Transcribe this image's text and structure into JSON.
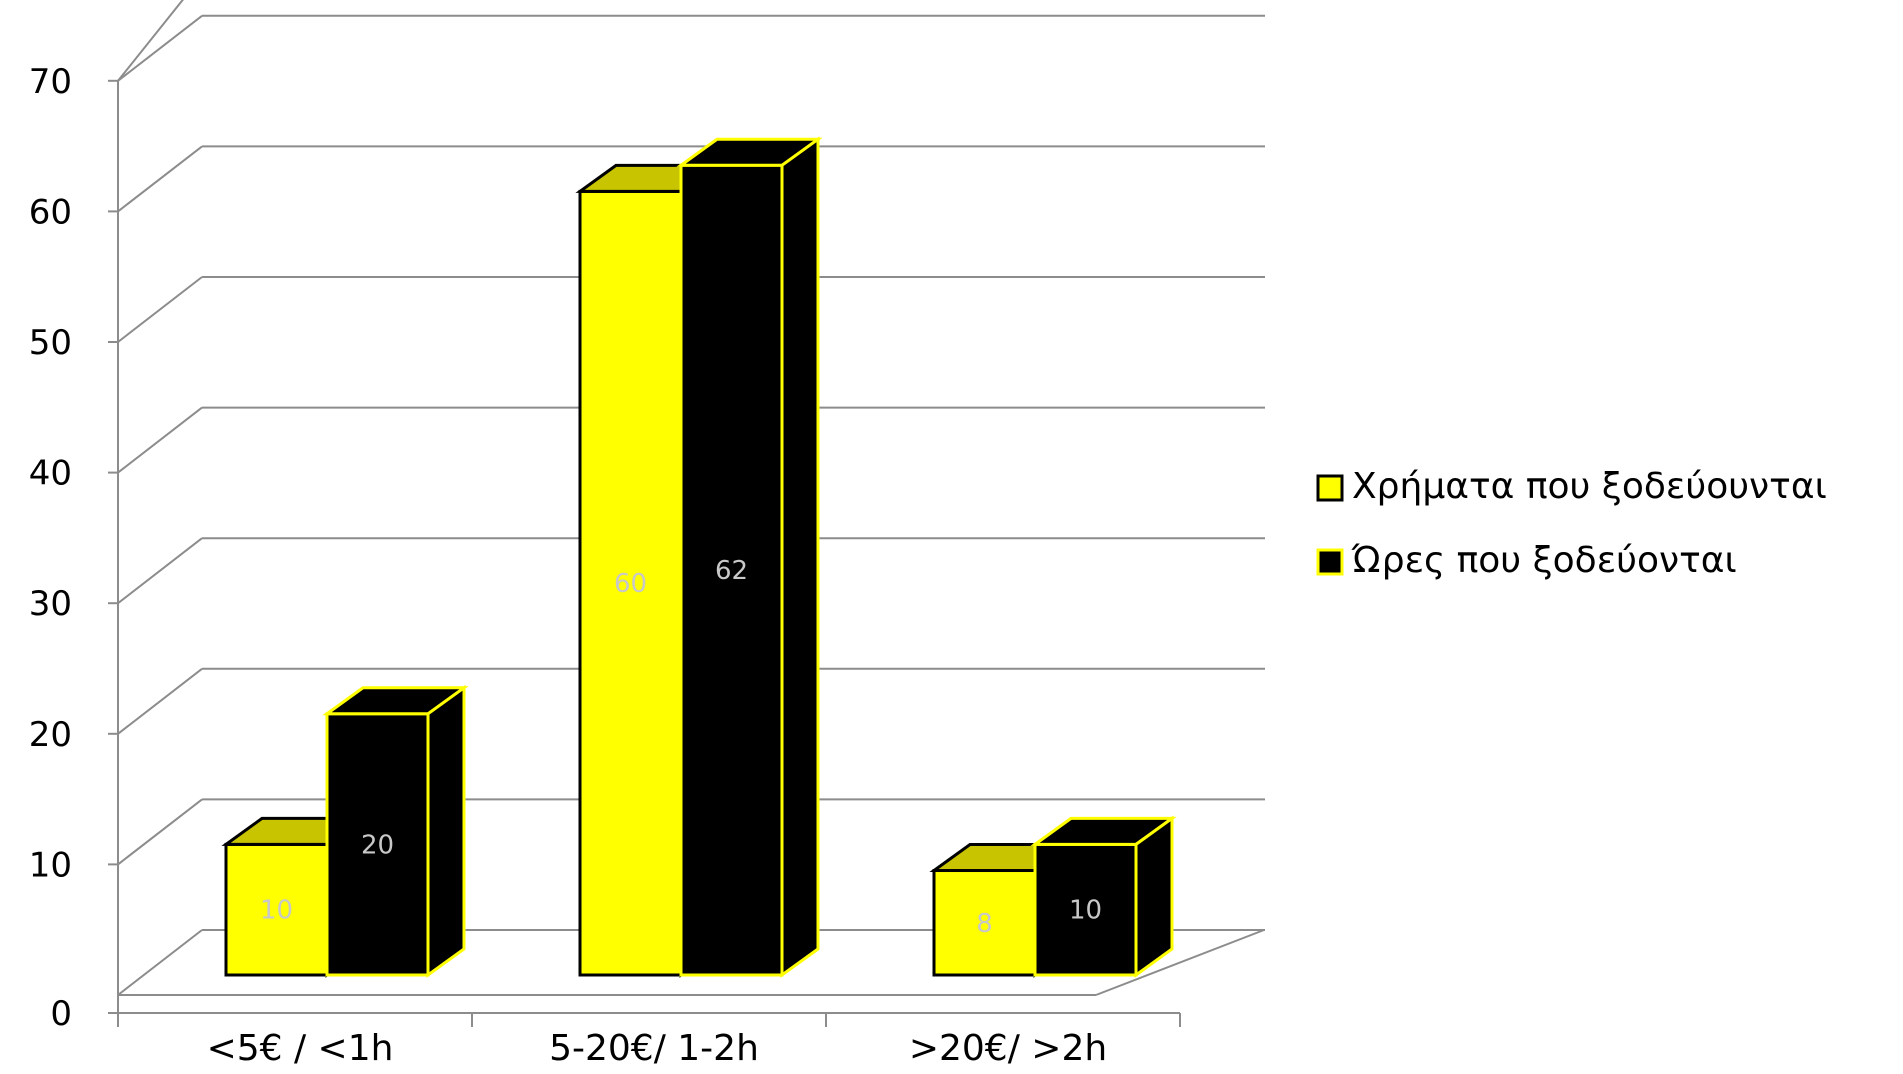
{
  "chart_data": {
    "type": "bar",
    "three_d": true,
    "categories": [
      "<5€ / <1h",
      "5-20€/ 1-2h",
      ">20€/ >2h"
    ],
    "series": [
      {
        "name": "Χρήματα που ξοδεύουνται",
        "values": [
          10,
          60,
          8
        ],
        "color": "#ffff00",
        "top_color": "#c8c400",
        "edge_color": "#000000",
        "label_color": "#c8c8c8"
      },
      {
        "name": "Ώρες που ξοδεύονται",
        "values": [
          20,
          62,
          10
        ],
        "color": "#000000",
        "top_color": "#000000",
        "edge_color": "#ffff00",
        "label_color": "#c8c8c8"
      }
    ],
    "y_ticks": [
      "0",
      "10",
      "20",
      "30",
      "40",
      "50",
      "60",
      "70"
    ],
    "ylim": [
      0,
      70
    ],
    "grid": true,
    "legend_position": "right",
    "title": "",
    "xlabel": "",
    "ylabel": ""
  }
}
